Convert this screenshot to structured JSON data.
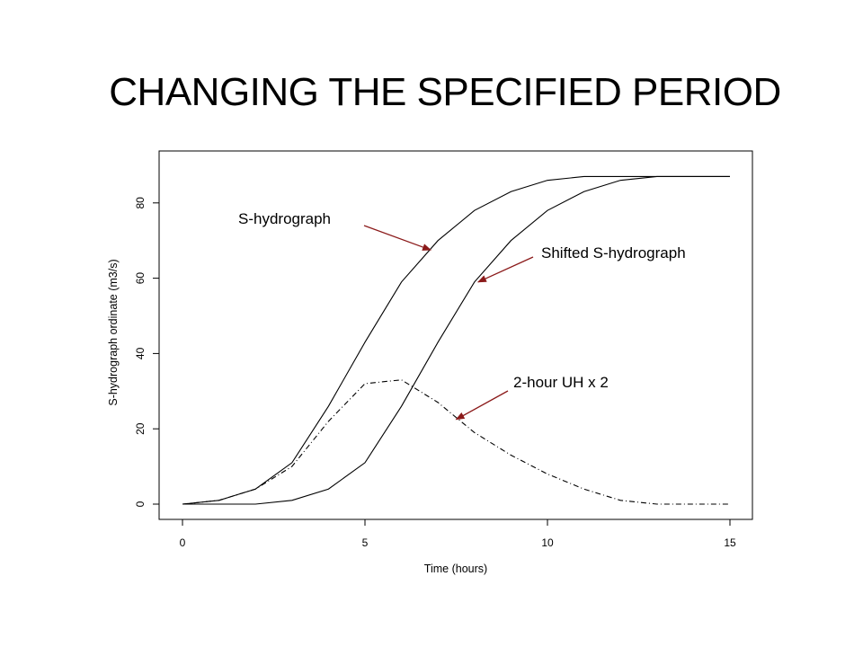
{
  "slide": {
    "title": "CHANGING THE SPECIFIED PERIOD"
  },
  "colors": {
    "arrow": "#8b1a1a",
    "line": "#000000"
  },
  "chart_data": {
    "type": "line",
    "title": "",
    "xlabel": "Time (hours)",
    "ylabel": "S-hydrograph ordinate (m3/s)",
    "xlim": [
      0,
      15
    ],
    "ylim": [
      0,
      87
    ],
    "xticks": [
      0,
      5,
      10,
      15
    ],
    "yticks": [
      0,
      20,
      40,
      60,
      80
    ],
    "grid": false,
    "series": [
      {
        "name": "S-hydrograph",
        "style": "solid",
        "x": [
          0,
          1,
          2,
          3,
          4,
          5,
          6,
          7,
          8,
          9,
          10,
          11,
          12,
          13,
          14,
          15
        ],
        "y": [
          0,
          1,
          4,
          11,
          26,
          43,
          59,
          70,
          78,
          83,
          86,
          87,
          87,
          87,
          87,
          87
        ]
      },
      {
        "name": "Shifted S-hydrograph",
        "style": "solid",
        "x": [
          0,
          1,
          2,
          3,
          4,
          5,
          6,
          7,
          8,
          9,
          10,
          11,
          12,
          13,
          14,
          15
        ],
        "y": [
          0,
          0,
          0,
          1,
          4,
          11,
          26,
          43,
          59,
          70,
          78,
          83,
          86,
          87,
          87,
          87
        ]
      },
      {
        "name": "2-hour UH x 2",
        "style": "dashdot",
        "x": [
          0,
          1,
          2,
          3,
          4,
          5,
          6,
          7,
          8,
          9,
          10,
          11,
          12,
          13,
          14,
          15
        ],
        "y": [
          0,
          1,
          4,
          10,
          22,
          32,
          33,
          27,
          19,
          13,
          8,
          4,
          1,
          0,
          0,
          0
        ]
      }
    ],
    "annotations": [
      {
        "text": "S-hydrograph",
        "target": [
          6.8,
          67.5
        ]
      },
      {
        "text": "Shifted S-hydrograph",
        "target": [
          8.1,
          59
        ]
      },
      {
        "text": "2-hour UH x 2",
        "target": [
          7.5,
          22.5
        ]
      }
    ]
  }
}
